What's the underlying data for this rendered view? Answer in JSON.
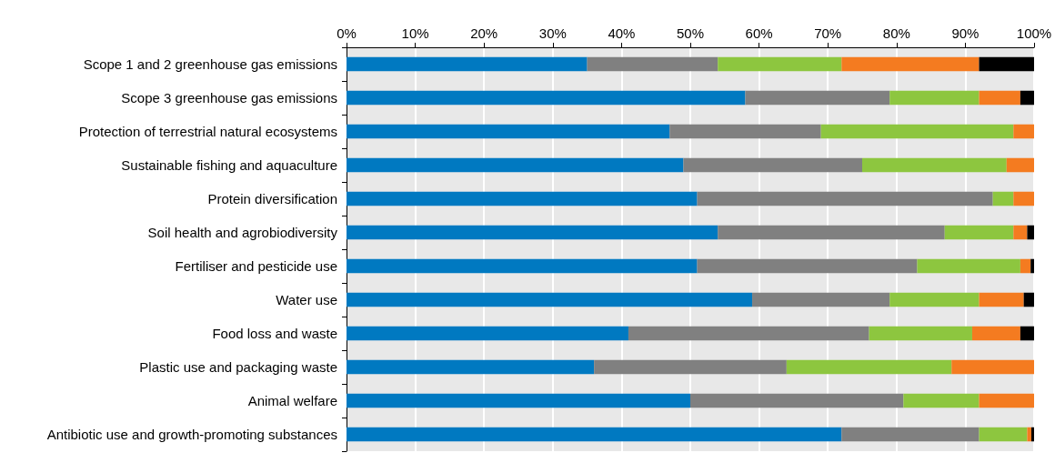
{
  "chart_data": {
    "type": "bar",
    "orientation": "horizontal",
    "stacked": true,
    "categories": [
      "Scope 1 and 2 greenhouse gas emissions",
      "Scope 3 greenhouse gas emissions",
      "Protection of terrestrial natural ecosystems",
      "Sustainable fishing and aquaculture",
      "Protein diversification",
      "Soil health and agrobiodiversity",
      "Fertiliser and pesticide use",
      "Water use",
      "Food loss and waste",
      "Plastic use and packaging waste",
      "Animal welfare",
      "Antibiotic use and growth-promoting substances"
    ],
    "series": [
      {
        "color": "#0079c1",
        "values": [
          35,
          58,
          47,
          49,
          51,
          54,
          51,
          59,
          41,
          36,
          50,
          72
        ]
      },
      {
        "color": "#808080",
        "values": [
          19,
          21,
          22,
          26,
          43,
          33,
          32,
          20,
          35,
          28,
          31,
          20
        ]
      },
      {
        "color": "#8dc63f",
        "values": [
          18,
          13,
          28,
          21,
          3,
          10,
          15,
          13,
          15,
          24,
          11,
          7
        ]
      },
      {
        "color": "#f47b20",
        "values": [
          20,
          6,
          3,
          4,
          3,
          2,
          1.5,
          6.5,
          7,
          12,
          8,
          0.6
        ]
      },
      {
        "color": "#000000",
        "values": [
          8,
          2,
          null,
          null,
          null,
          1,
          0.5,
          1.5,
          2,
          null,
          null,
          0.4
        ]
      }
    ],
    "xlim": [
      0,
      100
    ],
    "xticks": [
      {
        "value": 0,
        "label": "0%"
      },
      {
        "value": 10,
        "label": "10%"
      },
      {
        "value": 20,
        "label": "20%"
      },
      {
        "value": 30,
        "label": "30%"
      },
      {
        "value": 40,
        "label": "40%"
      },
      {
        "value": 50,
        "label": "50%"
      },
      {
        "value": 60,
        "label": "60%"
      },
      {
        "value": 70,
        "label": "70%"
      },
      {
        "value": 80,
        "label": "80%"
      },
      {
        "value": 90,
        "label": "90%"
      },
      {
        "value": 100,
        "label": "100%"
      }
    ],
    "grid": "x"
  }
}
